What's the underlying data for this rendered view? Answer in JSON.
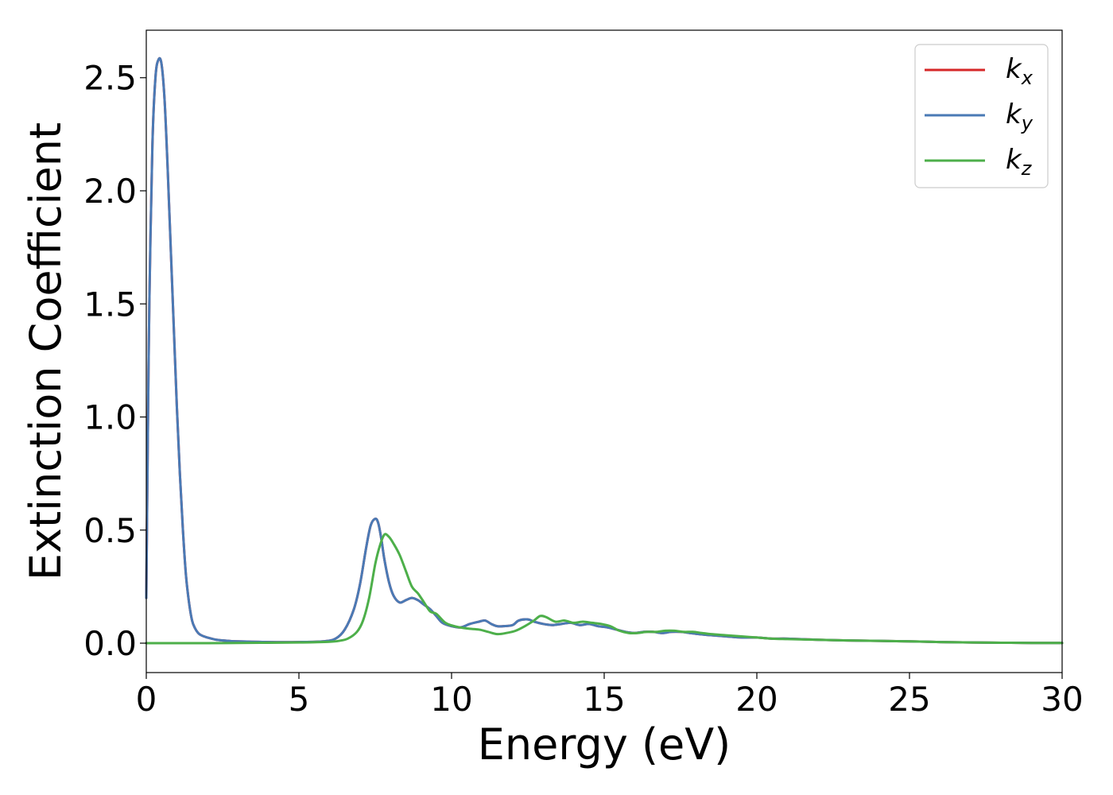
{
  "chart_data": {
    "type": "line",
    "title": "",
    "xlabel": "Energy (eV)",
    "ylabel": "Extinction Coefficient",
    "xlim": [
      0,
      30
    ],
    "ylim": [
      -0.13,
      2.71
    ],
    "xticks": [
      0,
      5,
      10,
      15,
      20,
      25,
      30
    ],
    "xtick_labels": [
      "0",
      "5",
      "10",
      "15",
      "20",
      "25",
      "30"
    ],
    "yticks": [
      0.0,
      0.5,
      1.0,
      1.5,
      2.0,
      2.5
    ],
    "ytick_labels": [
      "0.0",
      "0.5",
      "1.0",
      "1.5",
      "2.0",
      "2.5"
    ],
    "grid": false,
    "legend_position": "top-right",
    "series": [
      {
        "name": "k_x",
        "legend_base": "k",
        "legend_sub": "x",
        "color": "#d62728",
        "x": [
          0,
          0.05,
          0.1,
          0.2,
          0.3,
          0.4,
          0.5,
          0.6,
          0.7,
          0.8,
          0.9,
          1.0,
          1.1,
          1.2,
          1.3,
          1.4,
          1.5,
          1.6,
          1.7,
          1.8,
          2.0,
          2.3,
          2.7,
          3.0,
          4.0,
          5.0,
          5.8,
          6.2,
          6.5,
          6.8,
          7.0,
          7.2,
          7.35,
          7.5,
          7.6,
          7.7,
          7.8,
          7.95,
          8.1,
          8.3,
          8.5,
          8.7,
          8.9,
          9.1,
          9.3,
          9.5,
          9.7,
          10.0,
          10.3,
          10.6,
          10.9,
          11.1,
          11.3,
          11.5,
          11.7,
          12.0,
          12.2,
          12.5,
          12.7,
          13.0,
          13.3,
          13.6,
          13.9,
          14.2,
          14.5,
          14.8,
          15.1,
          15.4,
          15.7,
          16.0,
          16.3,
          16.6,
          16.9,
          17.2,
          17.5,
          17.8,
          18.1,
          18.5,
          19.0,
          19.5,
          20.0,
          20.5,
          21.0,
          22.0,
          23.0,
          24.0,
          25.0,
          26.0,
          27.0,
          28.0,
          29.0,
          30.0
        ],
        "y": [
          0.2,
          0.9,
          1.5,
          2.2,
          2.5,
          2.58,
          2.56,
          2.4,
          2.1,
          1.75,
          1.4,
          1.05,
          0.75,
          0.5,
          0.3,
          0.18,
          0.1,
          0.065,
          0.045,
          0.035,
          0.025,
          0.015,
          0.01,
          0.008,
          0.005,
          0.005,
          0.008,
          0.02,
          0.06,
          0.15,
          0.26,
          0.42,
          0.52,
          0.55,
          0.53,
          0.46,
          0.37,
          0.27,
          0.21,
          0.18,
          0.19,
          0.2,
          0.19,
          0.17,
          0.15,
          0.12,
          0.09,
          0.075,
          0.07,
          0.085,
          0.095,
          0.1,
          0.085,
          0.075,
          0.075,
          0.08,
          0.1,
          0.105,
          0.095,
          0.085,
          0.08,
          0.085,
          0.09,
          0.08,
          0.085,
          0.075,
          0.07,
          0.06,
          0.05,
          0.045,
          0.05,
          0.05,
          0.045,
          0.05,
          0.05,
          0.045,
          0.04,
          0.035,
          0.03,
          0.025,
          0.025,
          0.02,
          0.02,
          0.015,
          0.012,
          0.01,
          0.008,
          0.005,
          0.003,
          0.002,
          0.001,
          0.001
        ]
      },
      {
        "name": "k_y",
        "legend_base": "k",
        "legend_sub": "y",
        "color": "#4a7ab5",
        "x": [
          0,
          0.05,
          0.1,
          0.2,
          0.3,
          0.4,
          0.5,
          0.6,
          0.7,
          0.8,
          0.9,
          1.0,
          1.1,
          1.2,
          1.3,
          1.4,
          1.5,
          1.6,
          1.7,
          1.8,
          2.0,
          2.3,
          2.7,
          3.0,
          4.0,
          5.0,
          5.8,
          6.2,
          6.5,
          6.8,
          7.0,
          7.2,
          7.35,
          7.5,
          7.6,
          7.7,
          7.8,
          7.95,
          8.1,
          8.3,
          8.5,
          8.7,
          8.9,
          9.1,
          9.3,
          9.5,
          9.7,
          10.0,
          10.3,
          10.6,
          10.9,
          11.1,
          11.3,
          11.5,
          11.7,
          12.0,
          12.2,
          12.5,
          12.7,
          13.0,
          13.3,
          13.6,
          13.9,
          14.2,
          14.5,
          14.8,
          15.1,
          15.4,
          15.7,
          16.0,
          16.3,
          16.6,
          16.9,
          17.2,
          17.5,
          17.8,
          18.1,
          18.5,
          19.0,
          19.5,
          20.0,
          20.5,
          21.0,
          22.0,
          23.0,
          24.0,
          25.0,
          26.0,
          27.0,
          28.0,
          29.0,
          30.0
        ],
        "y": [
          0.2,
          0.9,
          1.5,
          2.2,
          2.5,
          2.58,
          2.56,
          2.4,
          2.1,
          1.75,
          1.4,
          1.05,
          0.75,
          0.5,
          0.3,
          0.18,
          0.1,
          0.065,
          0.045,
          0.035,
          0.025,
          0.015,
          0.01,
          0.008,
          0.005,
          0.005,
          0.008,
          0.02,
          0.06,
          0.15,
          0.26,
          0.42,
          0.52,
          0.55,
          0.53,
          0.46,
          0.37,
          0.27,
          0.21,
          0.18,
          0.19,
          0.2,
          0.19,
          0.17,
          0.15,
          0.12,
          0.09,
          0.075,
          0.07,
          0.085,
          0.095,
          0.1,
          0.085,
          0.075,
          0.075,
          0.08,
          0.1,
          0.105,
          0.095,
          0.085,
          0.08,
          0.085,
          0.09,
          0.08,
          0.085,
          0.075,
          0.07,
          0.06,
          0.05,
          0.045,
          0.05,
          0.05,
          0.045,
          0.05,
          0.05,
          0.045,
          0.04,
          0.035,
          0.03,
          0.025,
          0.025,
          0.02,
          0.02,
          0.015,
          0.012,
          0.01,
          0.008,
          0.005,
          0.003,
          0.002,
          0.001,
          0.001
        ]
      },
      {
        "name": "k_z",
        "legend_base": "k",
        "legend_sub": "z",
        "color": "#4daf4a",
        "x": [
          0,
          1.0,
          2.0,
          3.0,
          4.0,
          5.0,
          5.5,
          6.0,
          6.3,
          6.6,
          6.9,
          7.1,
          7.3,
          7.5,
          7.65,
          7.8,
          7.95,
          8.1,
          8.3,
          8.5,
          8.7,
          8.9,
          9.1,
          9.3,
          9.5,
          9.8,
          10.1,
          10.5,
          10.9,
          11.2,
          11.5,
          11.8,
          12.1,
          12.4,
          12.7,
          12.9,
          13.1,
          13.4,
          13.7,
          14.0,
          14.3,
          14.6,
          14.9,
          15.2,
          15.5,
          15.8,
          16.1,
          16.4,
          16.7,
          17.0,
          17.3,
          17.6,
          17.9,
          18.2,
          18.5,
          19.0,
          19.5,
          20.0,
          20.5,
          21.0,
          22.0,
          23.0,
          24.0,
          25.0,
          26.0,
          27.0,
          28.0,
          29.0,
          30.0
        ],
        "y": [
          0.0,
          0.0,
          0.0,
          0.001,
          0.002,
          0.003,
          0.004,
          0.006,
          0.01,
          0.02,
          0.05,
          0.1,
          0.2,
          0.35,
          0.43,
          0.48,
          0.47,
          0.44,
          0.39,
          0.32,
          0.25,
          0.22,
          0.18,
          0.14,
          0.13,
          0.09,
          0.075,
          0.065,
          0.06,
          0.05,
          0.04,
          0.045,
          0.055,
          0.075,
          0.1,
          0.12,
          0.115,
          0.095,
          0.1,
          0.09,
          0.095,
          0.09,
          0.085,
          0.075,
          0.055,
          0.045,
          0.045,
          0.05,
          0.05,
          0.055,
          0.055,
          0.05,
          0.05,
          0.045,
          0.04,
          0.035,
          0.03,
          0.025,
          0.02,
          0.018,
          0.015,
          0.012,
          0.01,
          0.008,
          0.005,
          0.003,
          0.002,
          0.001,
          0.001
        ]
      }
    ]
  }
}
